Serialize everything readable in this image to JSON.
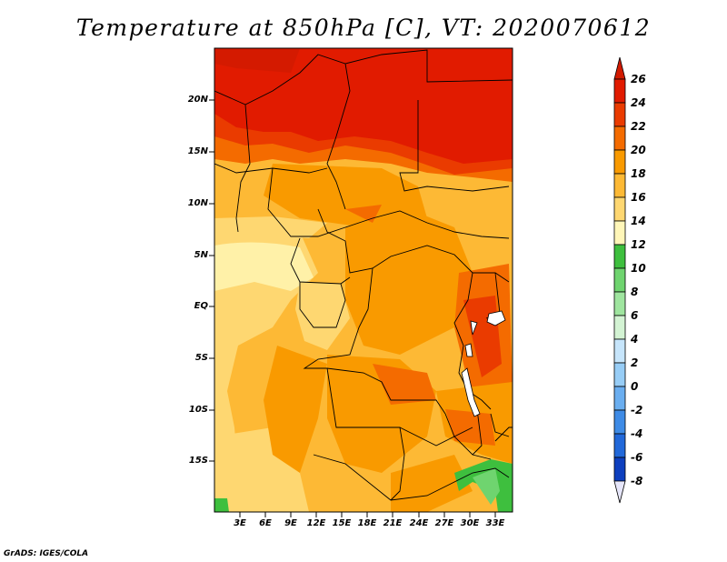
{
  "title": "Temperature at 850hPa [C], VT: 2020070612",
  "y_ticks": [
    "20N",
    "15N",
    "10N",
    "5N",
    "EQ",
    "5S",
    "10S",
    "15S"
  ],
  "x_ticks": [
    "3E",
    "6E",
    "9E",
    "12E",
    "15E",
    "18E",
    "21E",
    "24E",
    "27E",
    "30E",
    "33E"
  ],
  "colorbar": {
    "labels": [
      "26",
      "24",
      "22",
      "20",
      "18",
      "16",
      "14",
      "12",
      "10",
      "8",
      "6",
      "4",
      "2",
      "0",
      "-2",
      "-4",
      "-6",
      "-8"
    ],
    "colors": [
      "#e11b00",
      "#ea3b00",
      "#f46b00",
      "#f99a00",
      "#fdb935",
      "#fed771",
      "#fff6b8",
      "#3ebf3e",
      "#6fd46f",
      "#9fe59f",
      "#d3f3d3",
      "#c6e5fb",
      "#97cdf6",
      "#6aaef0",
      "#3e8be6",
      "#2168d9",
      "#0d3fbe",
      "#060b7a"
    ],
    "over_color": "#d21a00",
    "under_color": "#e6e6fa"
  },
  "credit": "GrADS: IGES/COLA"
}
